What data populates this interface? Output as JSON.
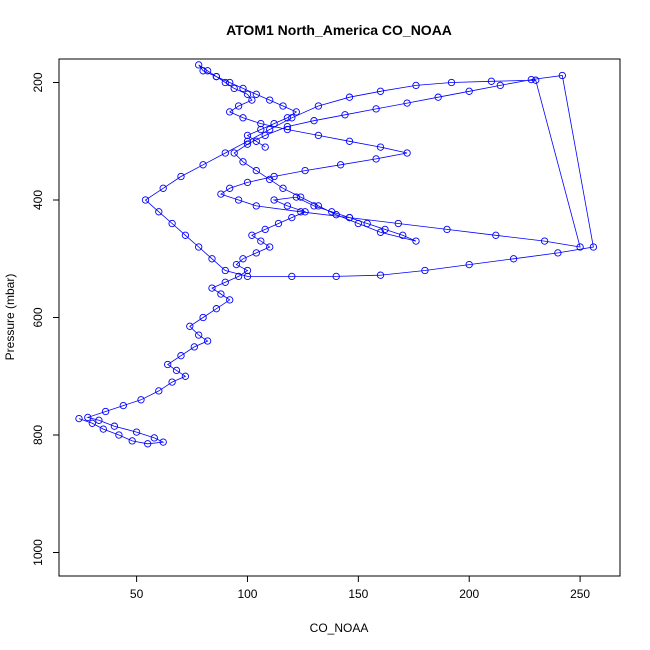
{
  "chart_data": {
    "type": "scatter",
    "title": "ATOM1 North_America CO_NOAA",
    "xlabel": "CO_NOAA",
    "ylabel": "Pressure (mbar)",
    "xlim": [
      15,
      268
    ],
    "ylim": [
      1040,
      160
    ],
    "y_reversed": true,
    "grid": false,
    "x_ticks": [
      50,
      100,
      150,
      200,
      250
    ],
    "y_ticks": [
      200,
      400,
      600,
      800,
      1000
    ],
    "series": [
      {
        "color": "#0000ff",
        "style": "line+points",
        "x": [
          24,
          30,
          35,
          42,
          48,
          55,
          62,
          58,
          50,
          40,
          33,
          28,
          36,
          44,
          52,
          60,
          66,
          72,
          68,
          64,
          70,
          76,
          82,
          78,
          74,
          80,
          86,
          92,
          88,
          84,
          90,
          96,
          100,
          95,
          98,
          104,
          110,
          106,
          102,
          108,
          114,
          120,
          126,
          118,
          112,
          122,
          130,
          138,
          146,
          154,
          162,
          170,
          176,
          160,
          150,
          140,
          132,
          124,
          116,
          110,
          104,
          98,
          94,
          100,
          108,
          118,
          130,
          144,
          158,
          172,
          186,
          200,
          214,
          228,
          242,
          256,
          240,
          220,
          200,
          180,
          160,
          140,
          120,
          100,
          90,
          84,
          78,
          72,
          66,
          60,
          54,
          62,
          70,
          80,
          90,
          100,
          110,
          120,
          132,
          146,
          160,
          176,
          192,
          210,
          230,
          250,
          234,
          212,
          190,
          168,
          146,
          124,
          104,
          96,
          88,
          92,
          100,
          112,
          126,
          142,
          158,
          172,
          160,
          146,
          132,
          118,
          106,
          98,
          92,
          96,
          102,
          100,
          94,
          90,
          86,
          82,
          78,
          80,
          86,
          92,
          98,
          104,
          110,
          116,
          122,
          118,
          112,
          106,
          100,
          104,
          108
        ],
        "y": [
          772,
          780,
          790,
          800,
          810,
          815,
          812,
          805,
          795,
          785,
          775,
          770,
          760,
          750,
          740,
          725,
          710,
          700,
          690,
          680,
          665,
          650,
          640,
          630,
          615,
          600,
          585,
          570,
          560,
          550,
          540,
          530,
          520,
          510,
          500,
          490,
          480,
          470,
          460,
          450,
          440,
          430,
          420,
          410,
          400,
          395,
          410,
          420,
          430,
          440,
          450,
          460,
          470,
          455,
          440,
          425,
          410,
          395,
          380,
          365,
          350,
          335,
          320,
          305,
          290,
          275,
          265,
          255,
          245,
          235,
          225,
          215,
          205,
          195,
          188,
          480,
          490,
          500,
          510,
          520,
          528,
          530,
          530,
          530,
          520,
          500,
          480,
          460,
          440,
          420,
          400,
          380,
          360,
          340,
          320,
          300,
          280,
          260,
          240,
          225,
          215,
          205,
          200,
          198,
          196,
          480,
          470,
          460,
          450,
          440,
          430,
          420,
          410,
          400,
          390,
          380,
          370,
          360,
          350,
          340,
          330,
          320,
          310,
          300,
          290,
          280,
          270,
          260,
          250,
          240,
          230,
          220,
          210,
          200,
          190,
          180,
          170,
          180,
          190,
          200,
          210,
          220,
          230,
          240,
          250,
          260,
          270,
          280,
          290,
          300,
          310
        ]
      }
    ]
  }
}
